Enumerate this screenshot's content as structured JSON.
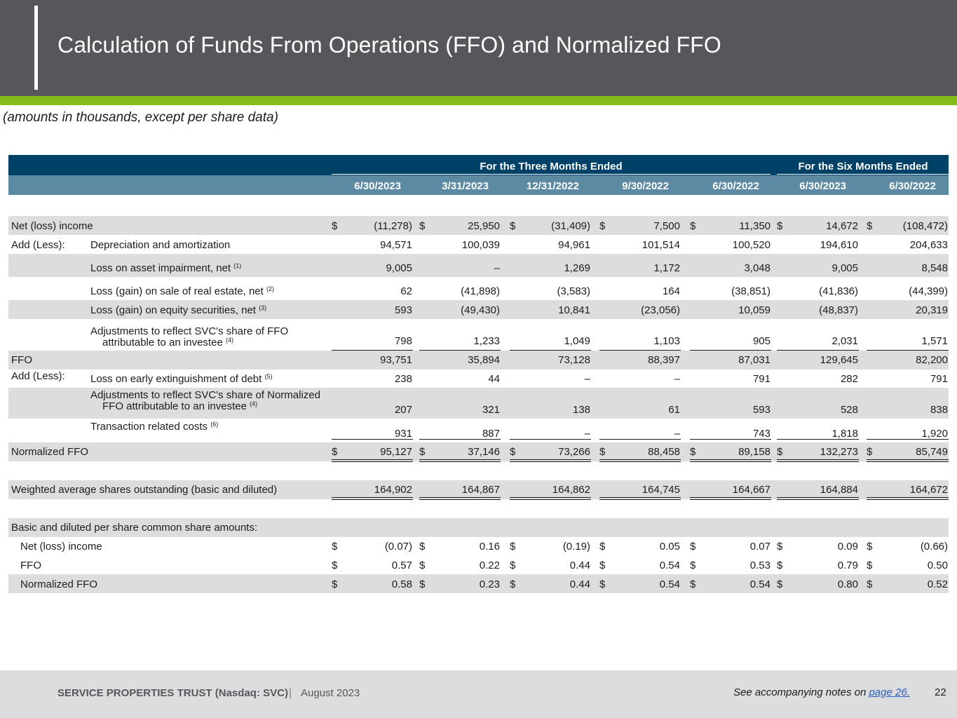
{
  "header": {
    "title": "Calculation of Funds From Operations (FFO) and Normalized FFO"
  },
  "subtitle": "(amounts in thousands, except per share data)",
  "table": {
    "group_headers": [
      "For the Three Months Ended",
      "For the Six Months Ended"
    ],
    "columns": [
      "6/30/2023",
      "3/31/2023",
      "12/31/2022",
      "9/30/2022",
      "6/30/2022",
      "6/30/2023",
      "6/30/2022"
    ],
    "rows": [
      {
        "label": "Net (loss) income",
        "values": [
          "(11,278)",
          "25,950",
          "(31,409)",
          "7,500",
          "11,350",
          "14,672",
          "(108,472)"
        ]
      },
      {
        "prefix": "Add (Less):",
        "label": "Depreciation and amortization",
        "values": [
          "94,571",
          "100,039",
          "94,961",
          "101,514",
          "100,520",
          "194,610",
          "204,633"
        ]
      },
      {
        "label": "Loss on asset impairment, net",
        "note": "(1)",
        "values": [
          "9,005",
          "–",
          "1,269",
          "1,172",
          "3,048",
          "9,005",
          "8,548"
        ]
      },
      {
        "label": "Loss (gain) on sale of real estate, net",
        "note": "(2)",
        "values": [
          "62",
          "(41,898)",
          "(3,583)",
          "164",
          "(38,851)",
          "(41,836)",
          "(44,399)"
        ]
      },
      {
        "label": "Loss (gain) on equity securities, net",
        "note": "(3)",
        "values": [
          "593",
          "(49,430)",
          "10,841",
          "(23,056)",
          "10,059",
          "(48,837)",
          "20,319"
        ]
      },
      {
        "label_line1": "Adjustments to reflect SVC's share of FFO",
        "label_line2": "attributable to an investee",
        "note": "(4)",
        "values": [
          "798",
          "1,233",
          "1,049",
          "1,103",
          "905",
          "2,031",
          "1,571"
        ]
      },
      {
        "label": "FFO",
        "values": [
          "93,751",
          "35,894",
          "73,128",
          "88,397",
          "87,031",
          "129,645",
          "82,200"
        ]
      },
      {
        "prefix": "Add (Less):",
        "label": "Loss on early extinguishment of debt",
        "note": "(5)",
        "values": [
          "238",
          "44",
          "–",
          "–",
          "791",
          "282",
          "791"
        ]
      },
      {
        "label_line1": "Adjustments to reflect SVC's share of Normalized",
        "label_line2": "FFO attributable to an investee",
        "note": "(4)",
        "values": [
          "207",
          "321",
          "138",
          "61",
          "593",
          "528",
          "838"
        ]
      },
      {
        "label": "Transaction related costs",
        "note": "(6)",
        "values": [
          "931",
          "887",
          "–",
          "–",
          "743",
          "1,818",
          "1,920"
        ]
      },
      {
        "label": "Normalized FFO",
        "values": [
          "95,127",
          "37,146",
          "73,266",
          "88,458",
          "89,158",
          "132,273",
          "85,749"
        ]
      },
      {
        "label": "Weighted average shares outstanding (basic and diluted)",
        "values": [
          "164,902",
          "164,867",
          "164,862",
          "164,745",
          "164,667",
          "164,884",
          "164,672"
        ]
      },
      {
        "label": "Basic and diluted per share common share amounts:"
      },
      {
        "label": "Net (loss) income",
        "values": [
          "(0.07)",
          "0.16",
          "(0.19)",
          "0.05",
          "0.07",
          "0.09",
          "(0.66)"
        ]
      },
      {
        "label": "FFO",
        "values": [
          "0.57",
          "0.22",
          "0.44",
          "0.54",
          "0.53",
          "0.79",
          "0.50"
        ]
      },
      {
        "label": "Normalized FFO",
        "values": [
          "0.58",
          "0.23",
          "0.44",
          "0.54",
          "0.54",
          "0.80",
          "0.52"
        ]
      }
    ],
    "currency_symbol": "$"
  },
  "footer": {
    "company": "SERVICE PROPERTIES TRUST (Nasdaq: SVC)",
    "separator": "|",
    "date": "August 2023",
    "notes_text": "See accompanying notes on ",
    "notes_link": "page 26.",
    "page_number": "22"
  },
  "colors": {
    "header_bg": "#55575b",
    "accent_green": "#84bd1a",
    "table_group_header": "#004168",
    "table_column_header": "#5d8aa3",
    "row_band": "#dcdddf",
    "link": "#2b5db8"
  }
}
